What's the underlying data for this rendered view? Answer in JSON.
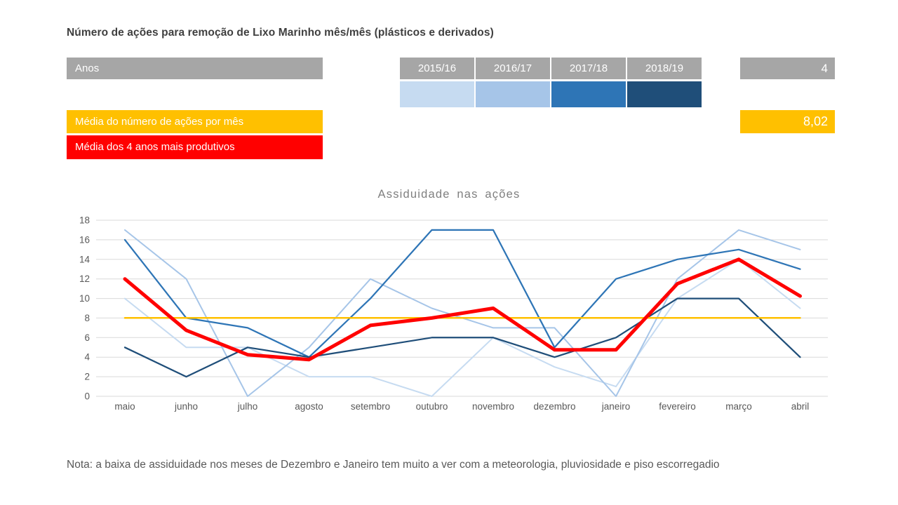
{
  "header": {
    "title": "Número de ações para remoção de Lixo Marinho mês/mês (plásticos e derivados)"
  },
  "years_panel": {
    "label": "Anos",
    "count": "4",
    "header_bg": "#a6a6a6",
    "years": [
      {
        "label": "2015/16",
        "color": "#c6dbf1"
      },
      {
        "label": "2016/17",
        "color": "#a6c5e8"
      },
      {
        "label": "2017/18",
        "color": "#2e75b6"
      },
      {
        "label": "2018/19",
        "color": "#1f4e79"
      }
    ]
  },
  "averages_panel": {
    "monthly_avg": {
      "label": "Média do número de ações por mês",
      "value": "8,02",
      "color": "#ffc000"
    },
    "top_years_avg": {
      "label": "Média dos 4 anos mais produtivos",
      "color": "#ff0000"
    }
  },
  "chart_data": {
    "type": "line",
    "title": "Assiduidade nas ações",
    "categories": [
      "maio",
      "junho",
      "julho",
      "agosto",
      "setembro",
      "outubro",
      "novembro",
      "dezembro",
      "janeiro",
      "fevereiro",
      "março",
      "abril"
    ],
    "xlabel": "",
    "ylabel": "",
    "ylim": [
      0,
      18
    ],
    "ytick_step": 2,
    "grid": true,
    "legend_position": "none",
    "series": [
      {
        "name": "2015/16",
        "color": "#c6dbf1",
        "width": 2,
        "values": [
          10,
          5,
          5,
          2,
          2,
          0,
          6,
          3,
          1,
          10,
          14,
          9
        ]
      },
      {
        "name": "2016/17",
        "color": "#a6c5e8",
        "width": 2,
        "values": [
          17,
          12,
          0,
          5,
          12,
          9,
          7,
          7,
          0,
          12,
          17,
          15
        ]
      },
      {
        "name": "2017/18",
        "color": "#2e75b6",
        "width": 2.25,
        "values": [
          16,
          8,
          7,
          4,
          10,
          17,
          17,
          5,
          12,
          14,
          15,
          13
        ]
      },
      {
        "name": "2018/19",
        "color": "#1f4e79",
        "width": 2.25,
        "values": [
          5,
          2,
          5,
          4,
          5,
          6,
          6,
          4,
          6,
          10,
          10,
          4
        ]
      },
      {
        "name": "Média do número de ações por mês",
        "color": "#ffc000",
        "width": 2.5,
        "values": [
          8.02,
          8.02,
          8.02,
          8.02,
          8.02,
          8.02,
          8.02,
          8.02,
          8.02,
          8.02,
          8.02,
          8.02
        ]
      },
      {
        "name": "Média dos 4 anos mais produtivos",
        "color": "#ff0000",
        "width": 5,
        "values": [
          12,
          6.75,
          4.25,
          3.75,
          7.25,
          8,
          9,
          4.75,
          4.75,
          11.5,
          14,
          10.25
        ]
      }
    ]
  },
  "note": "Nota: a baixa de assiduidade nos meses de Dezembro e Janeiro tem muito a ver com a meteorologia, pluviosidade e piso escorregadio"
}
